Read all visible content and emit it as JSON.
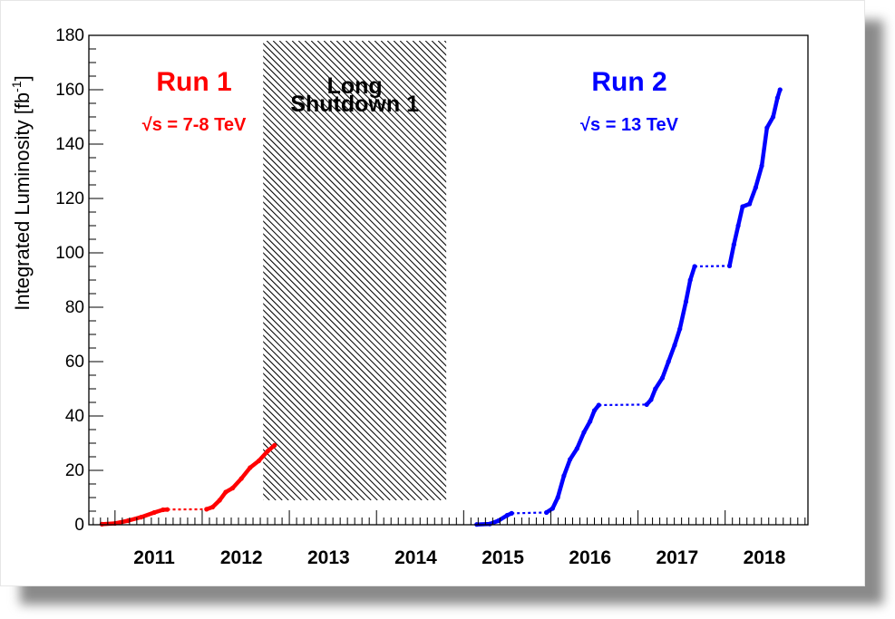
{
  "chart_data": {
    "type": "line",
    "ylabel": "Integrated Luminosity [fb",
    "ylabel_sup": "-1",
    "ylabel_close": "]",
    "ylim": [
      0,
      180
    ],
    "yticks": [
      "0",
      "20",
      "40",
      "60",
      "80",
      "100",
      "120",
      "140",
      "160",
      "180"
    ],
    "xlim": [
      2010.7,
      2018.95
    ],
    "year_labels": [
      "2011",
      "2012",
      "2013",
      "2014",
      "2015",
      "2016",
      "2017",
      "2018"
    ],
    "grid": false,
    "shutdown": {
      "title_line1": "Long",
      "title_line2": "Shutdown 1",
      "x_start": 2012.7,
      "x_end": 2014.8,
      "y_start": 9,
      "y_end": 178
    },
    "runs": [
      {
        "title": "Run 1",
        "energy_prefix": "√s",
        "energy": " = 7-8 TeV",
        "color": "#ff0000"
      },
      {
        "title": "Run 2",
        "energy_prefix": "√s",
        "energy": " = 13 TeV",
        "color": "#0000ff"
      }
    ],
    "series": [
      {
        "name": "",
        "color": "#ff0000",
        "style": "solid",
        "points": [
          [
            2010.85,
            0.2
          ],
          [
            2011.0,
            0.5
          ],
          [
            2011.15,
            1.5
          ],
          [
            2011.3,
            2.8
          ],
          [
            2011.45,
            4.5
          ],
          [
            2011.55,
            5.5
          ],
          [
            2011.6,
            5.6
          ]
        ]
      },
      {
        "name": "",
        "color": "#ff0000",
        "style": "dotted",
        "points": [
          [
            2011.6,
            5.6
          ],
          [
            2012.05,
            5.7
          ]
        ]
      },
      {
        "name": "",
        "color": "#ff0000",
        "style": "solid",
        "points": [
          [
            2012.05,
            5.7
          ],
          [
            2012.12,
            6.5
          ],
          [
            2012.2,
            9
          ],
          [
            2012.27,
            12
          ],
          [
            2012.35,
            13.5
          ],
          [
            2012.45,
            17
          ],
          [
            2012.55,
            21
          ],
          [
            2012.65,
            23.5
          ],
          [
            2012.75,
            27
          ],
          [
            2012.83,
            29.2
          ]
        ]
      },
      {
        "name": "",
        "color": "#0000ff",
        "style": "solid",
        "points": [
          [
            2015.15,
            0.1
          ],
          [
            2015.3,
            0.3
          ],
          [
            2015.4,
            1.5
          ],
          [
            2015.5,
            3.5
          ],
          [
            2015.55,
            4.2
          ]
        ]
      },
      {
        "name": "",
        "color": "#0000ff",
        "style": "dotted",
        "points": [
          [
            2015.55,
            4.2
          ],
          [
            2015.95,
            4.5
          ]
        ]
      },
      {
        "name": "",
        "color": "#0000ff",
        "style": "solid",
        "points": [
          [
            2015.95,
            4.5
          ],
          [
            2016.02,
            6
          ],
          [
            2016.08,
            10
          ],
          [
            2016.15,
            18
          ],
          [
            2016.22,
            24
          ],
          [
            2016.3,
            28
          ],
          [
            2016.38,
            34
          ],
          [
            2016.45,
            38
          ],
          [
            2016.5,
            42
          ],
          [
            2016.55,
            44
          ]
        ]
      },
      {
        "name": "",
        "color": "#0000ff",
        "style": "dotted",
        "points": [
          [
            2016.55,
            44
          ],
          [
            2017.1,
            44.2
          ]
        ]
      },
      {
        "name": "",
        "color": "#0000ff",
        "style": "solid",
        "points": [
          [
            2017.1,
            44.2
          ],
          [
            2017.15,
            46
          ],
          [
            2017.2,
            50
          ],
          [
            2017.28,
            54
          ],
          [
            2017.35,
            60
          ],
          [
            2017.42,
            66
          ],
          [
            2017.48,
            72
          ],
          [
            2017.55,
            82
          ],
          [
            2017.6,
            90
          ],
          [
            2017.65,
            95
          ]
        ]
      },
      {
        "name": "",
        "color": "#0000ff",
        "style": "dotted",
        "points": [
          [
            2017.65,
            95
          ],
          [
            2018.05,
            95.2
          ]
        ]
      },
      {
        "name": "",
        "color": "#0000ff",
        "style": "solid",
        "points": [
          [
            2018.05,
            95.2
          ],
          [
            2018.1,
            103
          ],
          [
            2018.15,
            110
          ],
          [
            2018.2,
            117
          ],
          [
            2018.28,
            118
          ],
          [
            2018.35,
            124
          ],
          [
            2018.42,
            132
          ],
          [
            2018.48,
            146
          ],
          [
            2018.55,
            150
          ],
          [
            2018.6,
            157
          ],
          [
            2018.63,
            160
          ]
        ]
      }
    ]
  }
}
